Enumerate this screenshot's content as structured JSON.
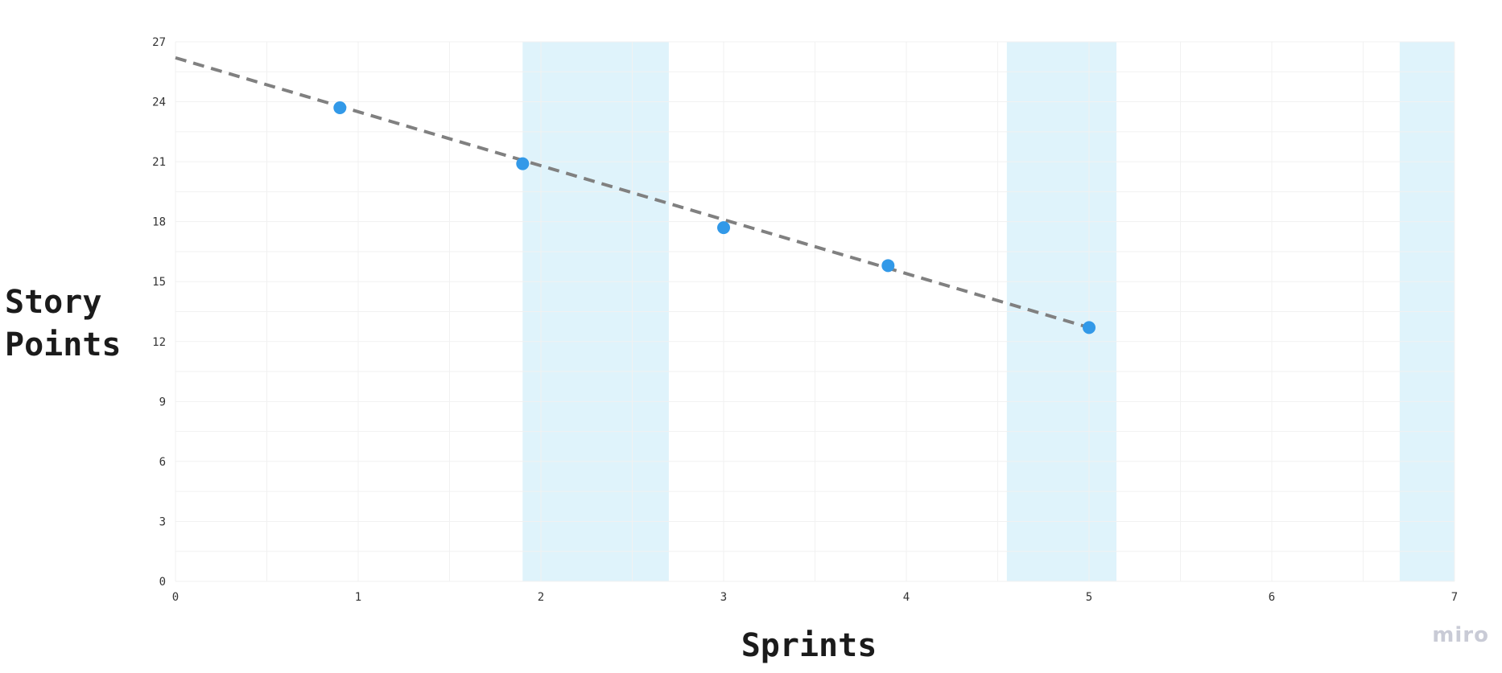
{
  "chart_data": {
    "type": "scatter",
    "xlabel": "Sprints",
    "ylabel": "Story\nPoints",
    "xlim": [
      0,
      7
    ],
    "ylim": [
      0,
      27
    ],
    "x_ticks": [
      "0",
      "1",
      "2",
      "3",
      "4",
      "5",
      "6",
      "7"
    ],
    "y_ticks": [
      "0",
      "3",
      "6",
      "9",
      "12",
      "15",
      "18",
      "21",
      "24",
      "27"
    ],
    "grid": true,
    "series": [
      {
        "points": [
          {
            "x": 0.9,
            "y": 23.7
          },
          {
            "x": 1.9,
            "y": 20.9
          },
          {
            "x": 3.0,
            "y": 17.7
          },
          {
            "x": 3.9,
            "y": 15.8
          },
          {
            "x": 5.0,
            "y": 12.7
          }
        ],
        "color": "#3299e8"
      }
    ],
    "trendline": {
      "style": "dashed",
      "color": "#808080",
      "from": {
        "x": 0,
        "y": 26.2
      },
      "to": {
        "x": 5.0,
        "y": 12.7
      }
    },
    "shaded_bands": [
      {
        "x_start": 1.9,
        "x_end": 2.7
      },
      {
        "x_start": 4.55,
        "x_end": 5.15
      },
      {
        "x_start": 6.7,
        "x_end": 7.0
      }
    ],
    "band_color": "#dff3fb"
  },
  "branding": {
    "logo_text": "miro"
  }
}
